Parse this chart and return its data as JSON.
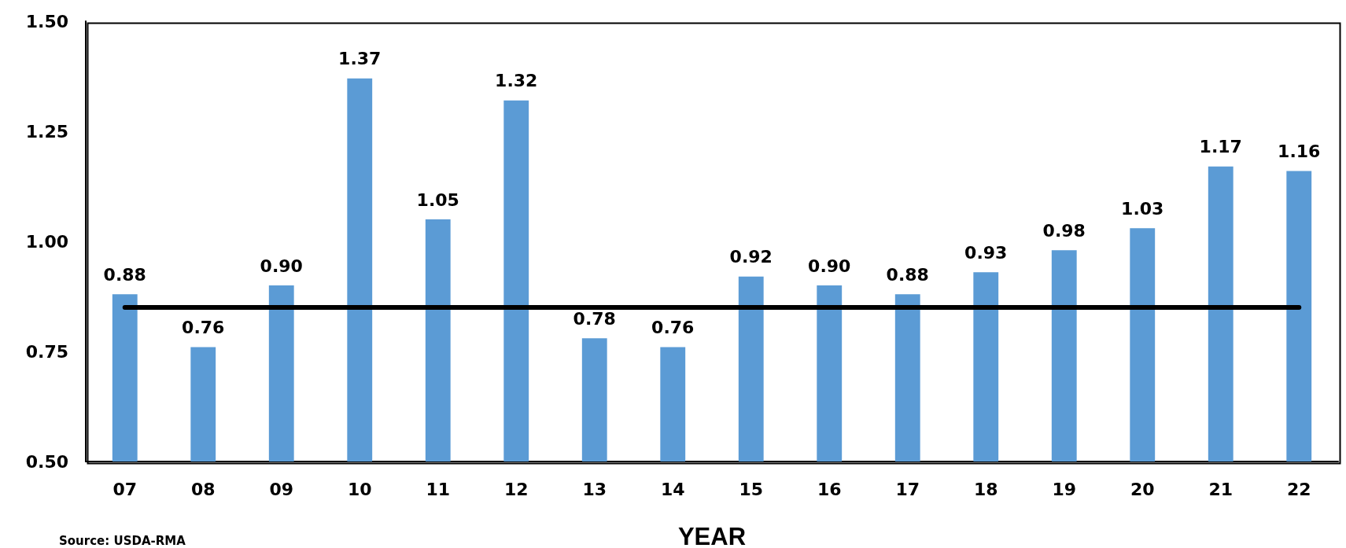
{
  "chart_data": {
    "type": "bar",
    "xlabel": "YEAR",
    "categories": [
      "07",
      "08",
      "09",
      "10",
      "11",
      "12",
      "13",
      "14",
      "15",
      "16",
      "17",
      "18",
      "19",
      "20",
      "21",
      "22"
    ],
    "values": [
      0.88,
      0.76,
      0.9,
      1.37,
      1.05,
      1.32,
      0.78,
      0.76,
      0.92,
      0.9,
      0.88,
      0.93,
      0.98,
      1.03,
      1.17,
      1.16
    ],
    "color": "#5b9bd5",
    "value_labels": [
      "0.88",
      "0.76",
      "0.90",
      "1.37",
      "1.05",
      "1.32",
      "0.78",
      "0.76",
      "0.92",
      "0.90",
      "0.88",
      "0.93",
      "0.98",
      "1.03",
      "1.17",
      "1.16"
    ],
    "ylim": [
      0.5,
      1.5
    ],
    "yticks": [
      {
        "value": 0.5,
        "label": "0.50"
      },
      {
        "value": 0.75,
        "label": "0.75"
      },
      {
        "value": 1.0,
        "label": "1.00"
      },
      {
        "value": 1.25,
        "label": "1.25"
      },
      {
        "value": 1.5,
        "label": "1.50"
      }
    ],
    "grid": false,
    "ref_lines": [
      {
        "axis": "y",
        "value": 0.85,
        "color": "#000000",
        "line_style": "solid"
      }
    ],
    "annotations": [
      "Source: USDA-RMA"
    ]
  }
}
